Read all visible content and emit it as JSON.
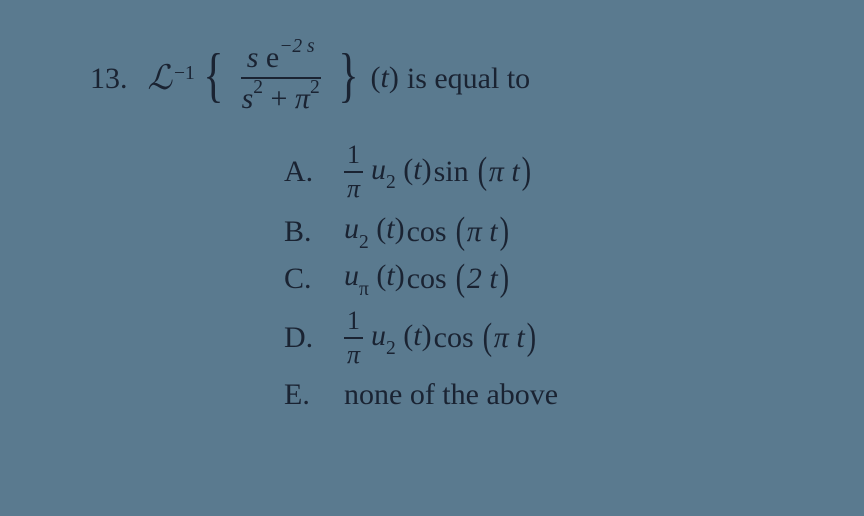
{
  "colors": {
    "background": "#5a7a8f",
    "text": "#1a2332"
  },
  "typography": {
    "family": "Times New Roman",
    "base_size_pt": 30,
    "frac_small_size_pt": 26
  },
  "question": {
    "number": "13.",
    "operator_symbol": "ℒ",
    "operator_exponent": "−1",
    "fraction": {
      "numerator_prefix_italic": "s",
      "numerator_rm": " e",
      "numerator_exponent": "−2 s",
      "denominator_s": "s",
      "denominator_s_exp": "2",
      "denominator_plus": " + ",
      "denominator_pi": "π",
      "denominator_pi_exp": "2"
    },
    "argument": "(t)",
    "tail_text": "is equal to"
  },
  "options": [
    {
      "letter": "A.",
      "has_frac": true,
      "frac_num": "1",
      "frac_den": "π",
      "u_sub": "2",
      "u_arg": "t",
      "trig": "sin",
      "trig_arg_pi": "π ",
      "trig_arg_var": "t"
    },
    {
      "letter": "B.",
      "has_frac": false,
      "u_sub": "2",
      "u_arg": "t",
      "trig": "cos",
      "trig_arg_pi": "π ",
      "trig_arg_var": "t"
    },
    {
      "letter": "C.",
      "has_frac": false,
      "u_sub": "π",
      "u_arg": "t",
      "trig": "cos",
      "trig_arg_pi": "2 ",
      "trig_arg_var": "t"
    },
    {
      "letter": "D.",
      "has_frac": true,
      "frac_num": "1",
      "frac_den": "π",
      "u_sub": "2",
      "u_arg": "t",
      "trig": "cos",
      "trig_arg_pi": "π ",
      "trig_arg_var": "t"
    },
    {
      "letter": "E.",
      "plain_text": "none of the above"
    }
  ]
}
